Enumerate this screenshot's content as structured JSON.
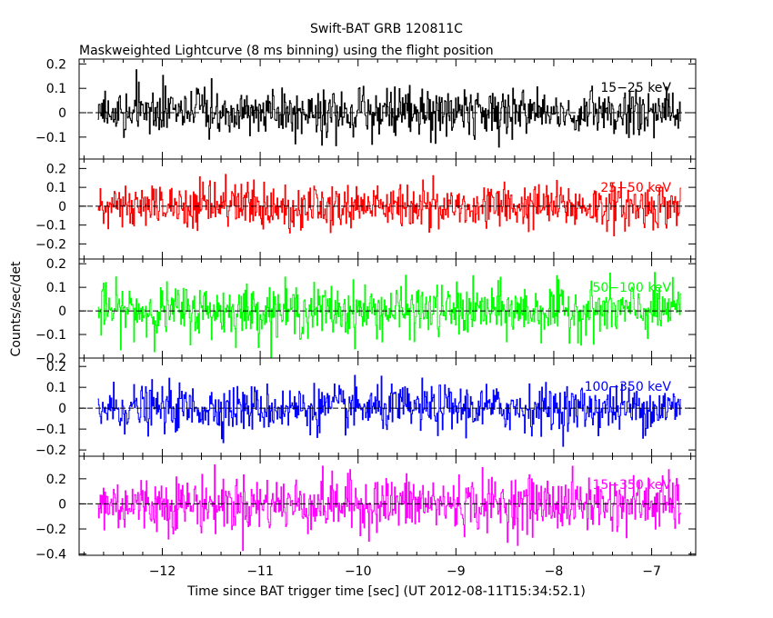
{
  "title": "Swift-BAT GRB 120811C",
  "subtitle": "Maskweighted Lightcurve (8 ms binning) using the flight position",
  "xlabel": "Time since BAT trigger time [sec] (UT 2012-08-11T15:34:52.1)",
  "ylabel": "Counts/sec/det",
  "chart_data": {
    "type": "line",
    "title": "Swift-BAT GRB 120811C",
    "subtitle": "Maskweighted Lightcurve (8 ms binning) using the flight position",
    "xlabel": "Time since BAT trigger time [sec] (UT 2012-08-11T15:34:52.1)",
    "ylabel": "Counts/sec/det",
    "xlim": [
      -12.85,
      -6.55
    ],
    "x_range_data": [
      -12.66,
      -6.7
    ],
    "bin_width_s": 0.008,
    "x_ticks": [
      -12,
      -11,
      -10,
      -9,
      -8,
      -7
    ],
    "x_tick_labels": [
      "−12",
      "−11",
      "−10",
      "−9",
      "−8",
      "−7"
    ],
    "grid": false,
    "series": [
      {
        "name": "15−25 keV",
        "color": "#000000",
        "ylim": [
          -0.19,
          0.22
        ],
        "y_ticks": [
          0.2,
          0.1,
          0,
          -0.1
        ],
        "y_tick_labels": [
          "0.2",
          "0.1",
          "0",
          "−0.1"
        ],
        "noise_sigma": 0.05,
        "min": -0.19,
        "max": 0.22
      },
      {
        "name": "25−50 keV",
        "color": "#ff0000",
        "ylim": [
          -0.28,
          0.25
        ],
        "y_ticks": [
          0.2,
          0.1,
          0,
          -0.1,
          -0.2
        ],
        "y_tick_labels": [
          "0.2",
          "0.1",
          "0",
          "−0.1",
          "−0.2"
        ],
        "noise_sigma": 0.06,
        "min": -0.28,
        "max": 0.22
      },
      {
        "name": "50−100 keV",
        "color": "#00ff00",
        "ylim": [
          -0.2,
          0.22
        ],
        "y_ticks": [
          0.2,
          0.1,
          0,
          -0.1,
          -0.2
        ],
        "y_tick_labels": [
          "0.2",
          "0.1",
          "0",
          "−0.1",
          "−0.2"
        ],
        "noise_sigma": 0.055,
        "min": -0.2,
        "max": 0.2
      },
      {
        "name": "100−350 keV",
        "color": "#0000ff",
        "ylim": [
          -0.23,
          0.24
        ],
        "y_ticks": [
          0.2,
          0.1,
          0,
          -0.1,
          -0.2
        ],
        "y_tick_labels": [
          "0.2",
          "0.1",
          "0",
          "−0.1",
          "−0.2"
        ],
        "noise_sigma": 0.055,
        "min": -0.23,
        "max": 0.22
      },
      {
        "name": "15−350 keV",
        "color": "#ff00ff",
        "ylim": [
          -0.41,
          0.38
        ],
        "y_ticks": [
          0.2,
          0,
          -0.2,
          -0.4
        ],
        "y_tick_labels": [
          "0.2",
          "0",
          "−0.2",
          "−0.4"
        ],
        "noise_sigma": 0.11,
        "min": -0.4,
        "max": 0.35
      }
    ]
  }
}
